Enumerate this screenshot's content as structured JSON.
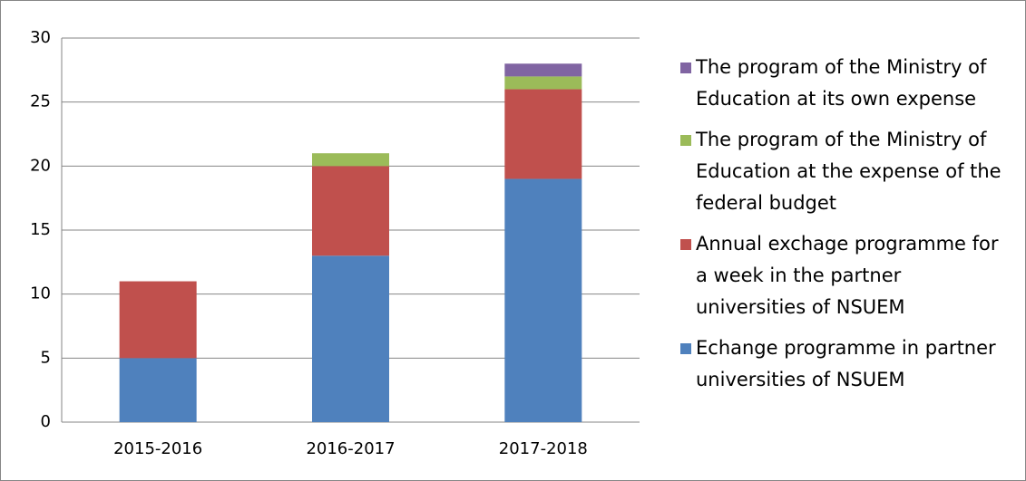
{
  "chart_data": {
    "type": "bar",
    "stacked": true,
    "categories": [
      "2015-2016",
      "2016-2017",
      "2017-2018"
    ],
    "series": [
      {
        "name": "Echange programme in partner universities of NSUEM",
        "color": "#4f81bd",
        "values": [
          5,
          13,
          19
        ]
      },
      {
        "name": "Annual exchage programme for a week in the partner universities of NSUEM",
        "color": "#c0504d",
        "values": [
          6,
          7,
          7
        ]
      },
      {
        "name": "The program of the Ministry of Education at the expense of the federal budget",
        "color": "#9bbb59",
        "values": [
          0,
          1,
          1
        ]
      },
      {
        "name": "The program of the Ministry of Education at its own expense",
        "color": "#8064a2",
        "values": [
          0,
          0,
          1
        ]
      }
    ],
    "ylim": [
      0,
      30
    ],
    "yticks": [
      0,
      5,
      10,
      15,
      20,
      25,
      30
    ],
    "grid": true,
    "legend": "right"
  }
}
